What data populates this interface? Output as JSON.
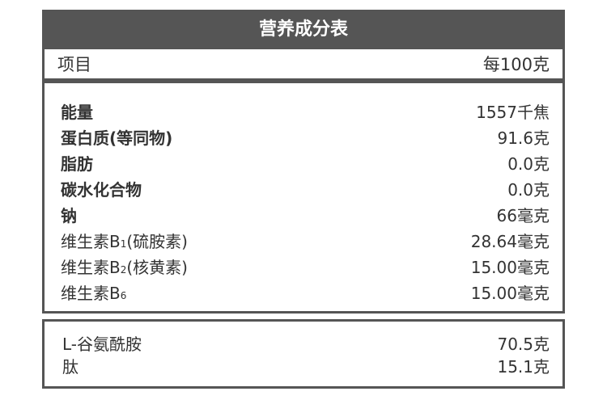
{
  "title": "营养成分表",
  "header": {
    "item": "项目",
    "per": "每100克"
  },
  "nutrients": [
    {
      "name": "能量",
      "value": "1557千焦",
      "bold": true
    },
    {
      "name": "蛋白质(等同物)",
      "value": "91.6克",
      "bold": true
    },
    {
      "name": "脂肪",
      "value": "0.0克",
      "bold": true
    },
    {
      "name": "碳水化合物",
      "value": "0.0克",
      "bold": true
    },
    {
      "name": "钠",
      "value": "66毫克",
      "bold": true
    },
    {
      "name": "维生素B",
      "sub": "1",
      "suffix": "(硫胺素)",
      "value": "28.64毫克",
      "bold": false
    },
    {
      "name": "维生素B",
      "sub": "2",
      "suffix": "(核黄素)",
      "value": "15.00毫克",
      "bold": false
    },
    {
      "name": "维生素B",
      "sub": "6",
      "suffix": "",
      "value": "15.00毫克",
      "bold": false
    }
  ],
  "extras": [
    {
      "name": "L-谷氨酰胺",
      "value": "70.5克"
    },
    {
      "name": "肽",
      "value": "15.1克"
    }
  ],
  "colors": {
    "frame": "#555555",
    "text": "#333333"
  }
}
